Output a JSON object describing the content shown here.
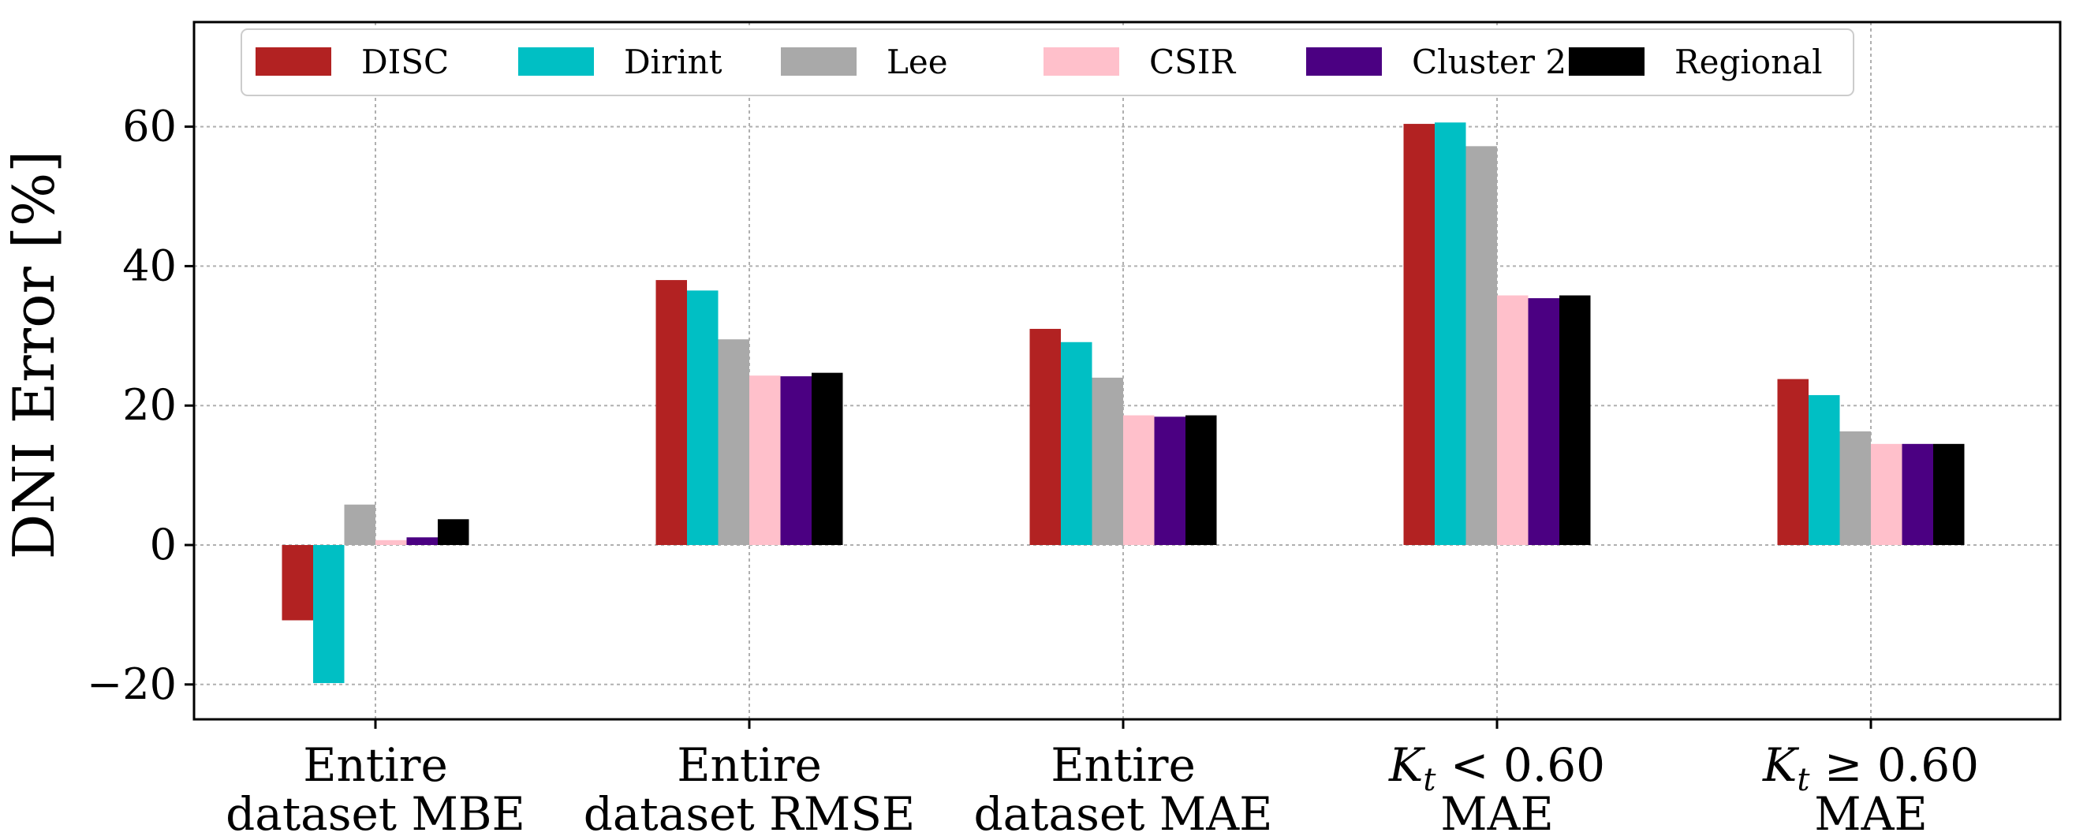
{
  "chart_data": {
    "type": "bar",
    "title": "",
    "xlabel": "",
    "ylabel": "DNI Error [%]",
    "ylim": [
      -25,
      75
    ],
    "yticks": [
      -20,
      0,
      20,
      40,
      60
    ],
    "ytick_labels": [
      "−20",
      "0",
      "20",
      "40",
      "60"
    ],
    "grid": true,
    "legend_position": "top",
    "categories": [
      [
        "Entire",
        "dataset MBE"
      ],
      [
        "Entire",
        "dataset RMSE"
      ],
      [
        "Entire",
        "dataset MAE"
      ],
      [
        "K_t < 0.60",
        "MAE"
      ],
      [
        "K_t ≥ 0.60",
        "MAE"
      ]
    ],
    "series": [
      {
        "name": "DISC",
        "color": "#b22222",
        "values": [
          -10.8,
          38.0,
          31.0,
          60.4,
          23.8
        ]
      },
      {
        "name": "Dirint",
        "color": "#00bfc4",
        "values": [
          -19.8,
          36.5,
          29.1,
          60.6,
          21.5
        ]
      },
      {
        "name": "Lee",
        "color": "#a9a9a9",
        "values": [
          5.8,
          29.5,
          24.0,
          57.2,
          16.3
        ]
      },
      {
        "name": "CSIR",
        "color": "#ffc0cb",
        "values": [
          0.7,
          24.3,
          18.6,
          35.8,
          14.5
        ]
      },
      {
        "name": "Cluster 2",
        "color": "#4b0082",
        "values": [
          1.1,
          24.2,
          18.4,
          35.4,
          14.5
        ]
      },
      {
        "name": "Regional",
        "color": "#000000",
        "values": [
          3.7,
          24.7,
          18.6,
          35.8,
          14.5
        ]
      }
    ]
  }
}
